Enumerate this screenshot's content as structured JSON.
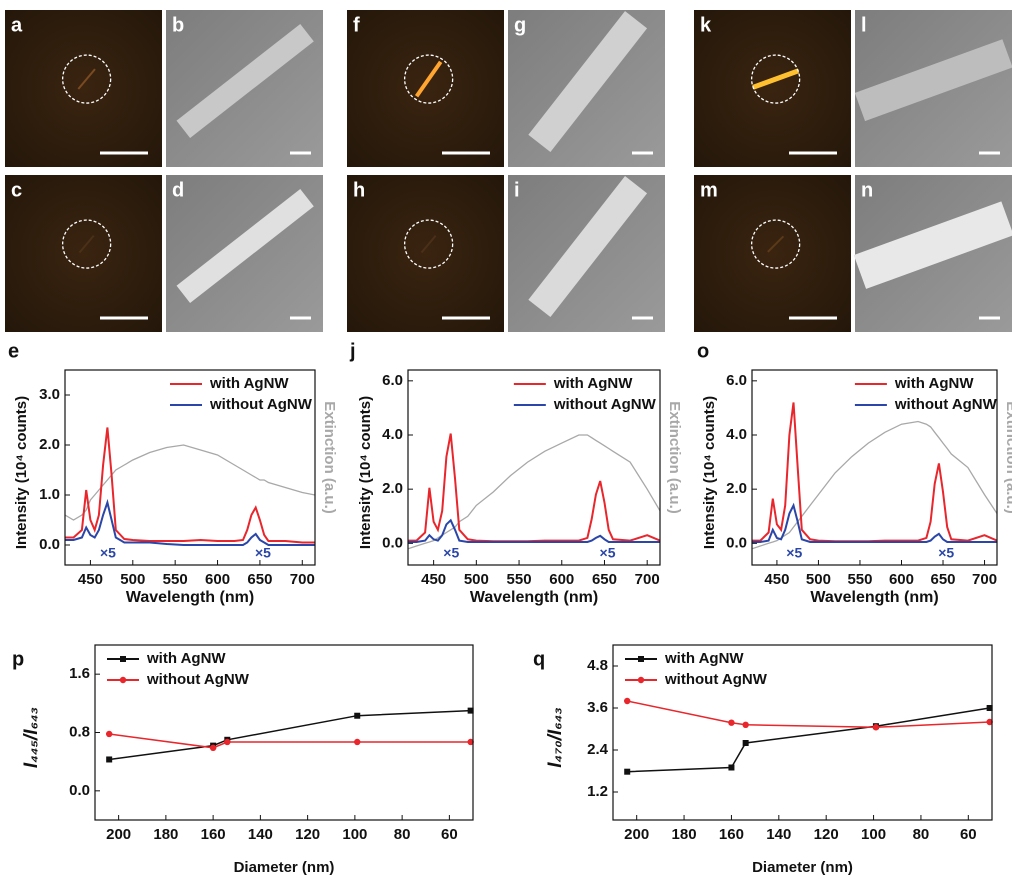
{
  "micrograph_labels": [
    "a",
    "b",
    "c",
    "d",
    "f",
    "g",
    "h",
    "i",
    "k",
    "l",
    "m",
    "n"
  ],
  "chart_data": [
    {
      "type": "line",
      "panel_label": "e",
      "xlabel": "Wavelength (nm)",
      "ylabel": "Intensity (10⁴ counts)",
      "y2label": "Extinction (a.u.)",
      "legend": "upper right",
      "x": [
        420,
        430,
        440,
        445,
        450,
        455,
        460,
        465,
        470,
        475,
        480,
        490,
        500,
        520,
        540,
        560,
        580,
        600,
        620,
        630,
        635,
        640,
        645,
        650,
        655,
        660,
        680,
        700,
        715
      ],
      "series": [
        {
          "name": "with AgNW",
          "color": "#e8262b",
          "values": [
            0.15,
            0.15,
            0.3,
            1.1,
            0.5,
            0.3,
            0.6,
            1.6,
            2.35,
            1.4,
            0.3,
            0.12,
            0.1,
            0.08,
            0.08,
            0.08,
            0.1,
            0.08,
            0.08,
            0.1,
            0.3,
            0.6,
            0.75,
            0.5,
            0.2,
            0.08,
            0.08,
            0.05,
            0.05
          ]
        },
        {
          "name": "without AgNW",
          "color": "#2a46a8",
          "values": [
            0.1,
            0.1,
            0.15,
            0.35,
            0.2,
            0.15,
            0.3,
            0.6,
            0.85,
            0.5,
            0.15,
            0.05,
            0.05,
            0.05,
            0.02,
            0,
            0,
            0,
            0,
            0,
            0.05,
            0.15,
            0.22,
            0.1,
            0.05,
            0,
            0,
            0,
            0
          ]
        }
      ],
      "extinction": {
        "color": "#a8a8a8",
        "values": [
          0.6,
          0.5,
          0.6,
          0.7,
          0.9,
          1.0,
          1.1,
          1.2,
          1.3,
          1.4,
          1.5,
          1.6,
          1.7,
          1.85,
          1.95,
          2.0,
          1.9,
          1.8,
          1.6,
          1.5,
          1.45,
          1.4,
          1.35,
          1.3,
          1.3,
          1.25,
          1.15,
          1.05,
          1.0
        ]
      },
      "annotations": [
        "×5",
        "×5"
      ],
      "xlim": [
        420,
        715
      ],
      "xticks": [
        450,
        500,
        550,
        600,
        650,
        700
      ],
      "ylim": [
        -0.4,
        3.5
      ],
      "yticks": [
        {
          "value": 0,
          "label": "0.0"
        },
        {
          "value": 1,
          "label": "1.0"
        },
        {
          "value": 2,
          "label": "2.0"
        },
        {
          "value": 3,
          "label": "3.0"
        }
      ]
    },
    {
      "type": "line",
      "panel_label": "j",
      "xlabel": "Wavelength (nm)",
      "ylabel": "Intensity (10⁴ counts)",
      "y2label": "Extinction (a.u.)",
      "legend": "upper right",
      "x": [
        420,
        430,
        440,
        445,
        450,
        455,
        460,
        465,
        470,
        475,
        480,
        490,
        500,
        520,
        540,
        560,
        580,
        600,
        620,
        630,
        635,
        640,
        645,
        650,
        655,
        660,
        680,
        700,
        715
      ],
      "series": [
        {
          "name": "with AgNW",
          "color": "#e8262b",
          "values": [
            0.1,
            0.1,
            0.4,
            2.05,
            0.8,
            0.5,
            1.2,
            3.2,
            4.05,
            2.4,
            0.5,
            0.15,
            0.1,
            0.08,
            0.08,
            0.08,
            0.1,
            0.1,
            0.1,
            0.2,
            0.9,
            1.8,
            2.3,
            1.5,
            0.5,
            0.15,
            0.1,
            0.3,
            0.1
          ]
        },
        {
          "name": "without AgNW",
          "color": "#2a46a8",
          "values": [
            0.05,
            0.05,
            0.1,
            0.3,
            0.15,
            0.1,
            0.3,
            0.7,
            0.85,
            0.5,
            0.1,
            0.05,
            0.05,
            0.05,
            0.05,
            0.05,
            0.05,
            0.05,
            0.05,
            0.05,
            0.1,
            0.2,
            0.28,
            0.15,
            0.05,
            0.05,
            0.05,
            0.05,
            0.05
          ]
        }
      ],
      "extinction": {
        "color": "#a8a8a8",
        "values": [
          -0.2,
          -0.1,
          0.0,
          0.05,
          0.1,
          0.2,
          0.3,
          0.4,
          0.5,
          0.6,
          0.8,
          1.0,
          1.4,
          1.9,
          2.5,
          3.0,
          3.4,
          3.7,
          4.0,
          4.0,
          3.9,
          3.8,
          3.7,
          3.6,
          3.5,
          3.4,
          3.0,
          2.0,
          1.2
        ]
      },
      "annotations": [
        "×5",
        "×5"
      ],
      "xlim": [
        420,
        715
      ],
      "xticks": [
        450,
        500,
        550,
        600,
        650,
        700
      ],
      "ylim": [
        -0.8,
        6.4
      ],
      "yticks": [
        {
          "value": 0,
          "label": "0.0"
        },
        {
          "value": 2,
          "label": "2.0"
        },
        {
          "value": 4,
          "label": "4.0"
        },
        {
          "value": 6,
          "label": "6.0"
        }
      ]
    },
    {
      "type": "line",
      "panel_label": "o",
      "xlabel": "Wavelength (nm)",
      "ylabel": "Intensity (10⁴ counts)",
      "y2label": "Extinction (a.u.)",
      "legend": "upper right",
      "x": [
        420,
        430,
        440,
        445,
        450,
        455,
        460,
        465,
        470,
        475,
        480,
        490,
        500,
        520,
        540,
        560,
        580,
        600,
        620,
        630,
        635,
        640,
        645,
        650,
        655,
        660,
        680,
        700,
        715
      ],
      "series": [
        {
          "name": "with AgNW",
          "color": "#e8262b",
          "values": [
            0.1,
            0.1,
            0.4,
            1.65,
            0.7,
            0.5,
            1.4,
            4.0,
            5.2,
            2.8,
            0.5,
            0.15,
            0.1,
            0.08,
            0.08,
            0.08,
            0.1,
            0.1,
            0.1,
            0.2,
            0.8,
            2.2,
            2.95,
            1.9,
            0.6,
            0.15,
            0.1,
            0.3,
            0.1
          ]
        },
        {
          "name": "without AgNW",
          "color": "#2a46a8",
          "values": [
            0.05,
            0.05,
            0.1,
            0.5,
            0.2,
            0.15,
            0.5,
            1.1,
            1.4,
            0.8,
            0.15,
            0.05,
            0.05,
            0.05,
            0.05,
            0.05,
            0.05,
            0.05,
            0.05,
            0.05,
            0.1,
            0.25,
            0.35,
            0.15,
            0.05,
            0.05,
            0.05,
            0.05,
            0.05
          ]
        }
      ],
      "extinction": {
        "color": "#a8a8a8",
        "values": [
          -0.2,
          -0.1,
          0.0,
          0.05,
          0.1,
          0.2,
          0.3,
          0.4,
          0.6,
          0.8,
          1.0,
          1.4,
          1.8,
          2.6,
          3.2,
          3.7,
          4.1,
          4.4,
          4.5,
          4.4,
          4.3,
          4.1,
          3.9,
          3.7,
          3.5,
          3.3,
          2.8,
          1.8,
          1.1
        ]
      },
      "annotations": [
        "×5",
        "×5"
      ],
      "xlim": [
        420,
        715
      ],
      "xticks": [
        450,
        500,
        550,
        600,
        650,
        700
      ],
      "ylim": [
        -0.8,
        6.4
      ],
      "yticks": [
        {
          "value": 0,
          "label": "0.0"
        },
        {
          "value": 2,
          "label": "2.0"
        },
        {
          "value": 4,
          "label": "4.0"
        },
        {
          "value": 6,
          "label": "6.0"
        }
      ]
    },
    {
      "type": "line",
      "panel_label": "p",
      "xlabel": "Diameter (nm)",
      "ylabel": "I₄₄₅/I₆₄₃",
      "legend": "upper left",
      "x": [
        204,
        160,
        154,
        99,
        51
      ],
      "series": [
        {
          "name": "with AgNW",
          "color": "#111111",
          "marker": "square",
          "values": [
            0.43,
            0.62,
            0.7,
            1.03,
            1.1
          ]
        },
        {
          "name": "without AgNW",
          "color": "#e8262b",
          "marker": "circle",
          "values": [
            0.78,
            0.59,
            0.67,
            0.67,
            0.67
          ]
        }
      ],
      "xlim": [
        210,
        50
      ],
      "xticks": [
        200,
        180,
        160,
        140,
        120,
        100,
        80,
        60
      ],
      "ylim": [
        -0.4,
        2.0
      ],
      "yticks": [
        {
          "value": 0,
          "label": "0.0"
        },
        0.8,
        1.6
      ]
    },
    {
      "type": "line",
      "panel_label": "q",
      "xlabel": "Diameter (nm)",
      "ylabel": "I₄₇₀/I₆₄₃",
      "legend": "upper left",
      "x": [
        204,
        160,
        154,
        99,
        51
      ],
      "series": [
        {
          "name": "with AgNW",
          "color": "#111111",
          "marker": "square",
          "values": [
            1.78,
            1.9,
            2.6,
            3.08,
            3.6
          ]
        },
        {
          "name": "without AgNW",
          "color": "#e8262b",
          "marker": "circle",
          "values": [
            3.8,
            3.18,
            3.12,
            3.05,
            3.2
          ]
        }
      ],
      "xlim": [
        210,
        50
      ],
      "xticks": [
        200,
        180,
        160,
        140,
        120,
        100,
        80,
        60
      ],
      "ylim": [
        0.4,
        5.4
      ],
      "yticks": [
        1.2,
        2.4,
        3.6,
        4.8
      ]
    }
  ]
}
